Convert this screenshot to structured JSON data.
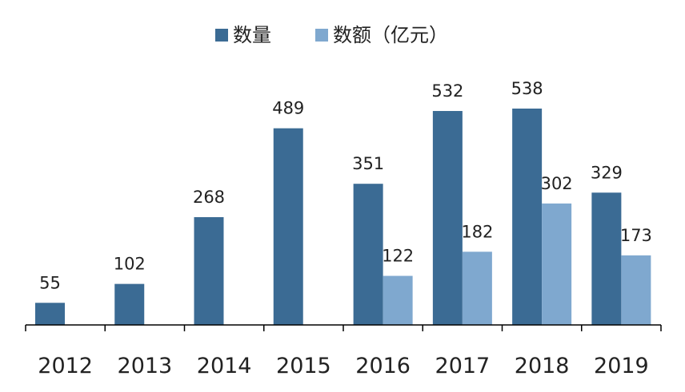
{
  "chart_data": {
    "type": "bar",
    "title": "",
    "xlabel": "",
    "ylabel": "",
    "categories": [
      "2012",
      "2013",
      "2014",
      "2015",
      "2016",
      "2017",
      "2018",
      "2019"
    ],
    "series": [
      {
        "name": "数量",
        "color": "#3b6b94",
        "values": [
          55,
          102,
          268,
          489,
          351,
          532,
          538,
          329
        ]
      },
      {
        "name": "数额（亿元）",
        "color": "#7fa8cf",
        "values": [
          null,
          null,
          null,
          null,
          122,
          182,
          302,
          173
        ]
      }
    ],
    "ylim": [
      0,
      538
    ],
    "grid": false,
    "legend": "top-center",
    "data_labels": true
  }
}
